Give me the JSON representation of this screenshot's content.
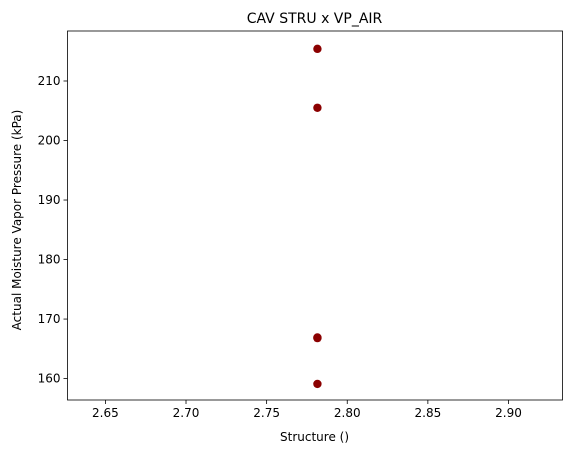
{
  "chart_data": {
    "type": "scatter",
    "title": "CAV STRU x VP_AIR",
    "xlabel": "Structure ()",
    "ylabel": "Actual Moisture Vapor Pressure (kPa)",
    "xlim": [
      2.6265,
      2.9335
    ],
    "ylim": [
      156.4,
      218.4
    ],
    "xticks": [
      2.65,
      2.7,
      2.75,
      2.8,
      2.85,
      2.9
    ],
    "xtick_labels": [
      "2.65",
      "2.70",
      "2.75",
      "2.80",
      "2.85",
      "2.90"
    ],
    "yticks": [
      160,
      170,
      180,
      190,
      200,
      210
    ],
    "ytick_labels": [
      "160",
      "170",
      "180",
      "190",
      "200",
      "210"
    ],
    "grid": false,
    "marker_color": "#8b0000",
    "points": [
      {
        "x": 2.7815,
        "y": 215.4
      },
      {
        "x": 2.7815,
        "y": 205.5
      },
      {
        "x": 2.7815,
        "y": 166.8
      },
      {
        "x": 2.7815,
        "y": 166.9
      },
      {
        "x": 2.7815,
        "y": 159.1
      }
    ]
  }
}
